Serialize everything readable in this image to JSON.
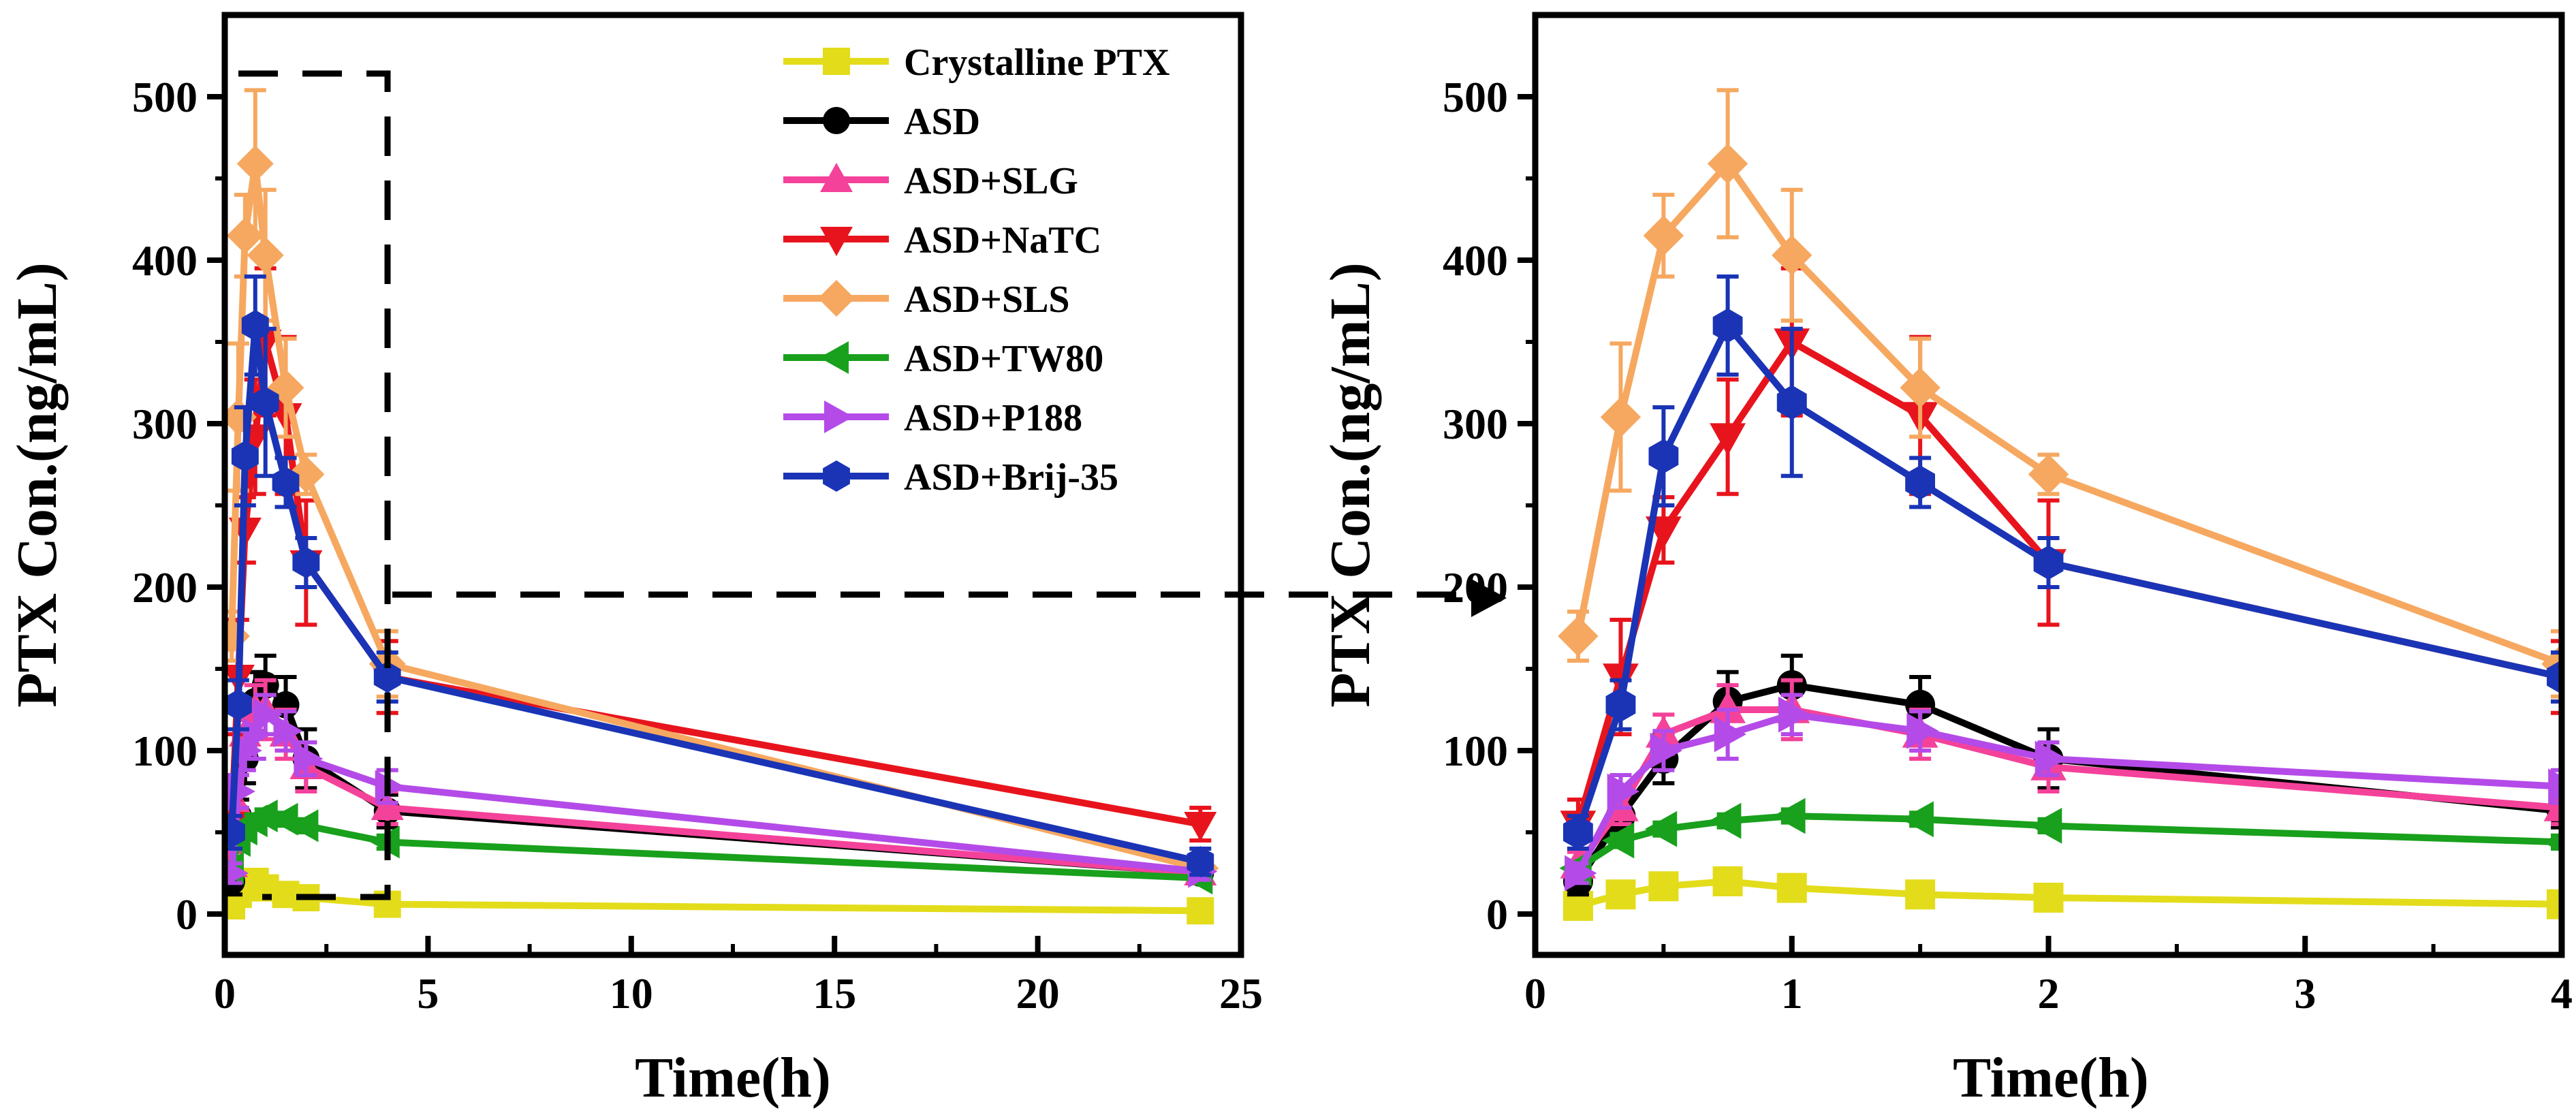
{
  "chart_data": [
    {
      "type": "line",
      "id": "full",
      "xlabel": "Time(h)",
      "ylabel": "PTX Con.(ng/mL)",
      "xlim": [
        0,
        25
      ],
      "ylim": [
        -25,
        550
      ],
      "xticks": [
        0,
        5,
        10,
        15,
        20,
        25
      ],
      "yticks": [
        0,
        100,
        200,
        300,
        400,
        500
      ],
      "legend_position": "top-right",
      "x": [
        0.167,
        0.333,
        0.5,
        0.75,
        1,
        1.5,
        2,
        4,
        24
      ],
      "series": [
        {
          "name": "Crystalline PTX",
          "color": "#e3dc1b",
          "marker": "square",
          "values": [
            5,
            12,
            17,
            20,
            16,
            12,
            10,
            6,
            2
          ],
          "errors": [
            3,
            4,
            5,
            6,
            5,
            4,
            4,
            3,
            1
          ]
        },
        {
          "name": "ASD",
          "color": "#000000",
          "marker": "circle",
          "values": [
            20,
            60,
            95,
            130,
            140,
            128,
            95,
            63,
            25
          ],
          "errors": [
            8,
            10,
            15,
            18,
            18,
            17,
            18,
            10,
            5
          ]
        },
        {
          "name": "ASD+SLG",
          "color": "#f4429a",
          "marker": "triangle-up",
          "values": [
            30,
            65,
            110,
            125,
            125,
            110,
            90,
            65,
            25
          ],
          "errors": [
            8,
            10,
            12,
            15,
            18,
            15,
            15,
            10,
            5
          ]
        },
        {
          "name": "ASD+NaTC",
          "color": "#e8141d",
          "marker": "triangle-down",
          "values": [
            55,
            145,
            235,
            292,
            350,
            305,
            215,
            145,
            55
          ],
          "errors": [
            15,
            35,
            20,
            35,
            45,
            48,
            38,
            22,
            10
          ]
        },
        {
          "name": "ASD+SLS",
          "color": "#f6a860",
          "marker": "diamond",
          "values": [
            170,
            304,
            415,
            459,
            403,
            322,
            269,
            153,
            28
          ],
          "errors": [
            15,
            45,
            25,
            45,
            40,
            30,
            12,
            20,
            5
          ]
        },
        {
          "name": "ASD+TW80",
          "color": "#19a01c",
          "marker": "triangle-left",
          "values": [
            28,
            45,
            52,
            57,
            60,
            58,
            54,
            44,
            22
          ],
          "errors": [
            3,
            4,
            4,
            4,
            4,
            4,
            4,
            4,
            3
          ]
        },
        {
          "name": "ASD+P188",
          "color": "#b44be8",
          "marker": "triangle-right",
          "values": [
            25,
            75,
            100,
            110,
            122,
            112,
            95,
            78,
            26
          ],
          "errors": [
            6,
            10,
            12,
            15,
            12,
            12,
            10,
            10,
            5
          ]
        },
        {
          "name": "ASD+Brij-35",
          "color": "#1a34b5",
          "marker": "hexagon",
          "values": [
            50,
            128,
            280,
            360,
            313,
            264,
            215,
            145,
            32
          ],
          "errors": [
            10,
            15,
            30,
            30,
            45,
            15,
            15,
            15,
            8
          ]
        }
      ]
    },
    {
      "type": "line",
      "id": "zoom",
      "xlabel": "Time(h)",
      "ylabel": "PTX Con.(ng/mL)",
      "xlim": [
        0,
        4
      ],
      "ylim": [
        -25,
        550
      ],
      "xticks": [
        0,
        1,
        2,
        3,
        4
      ],
      "yticks": [
        0,
        100,
        200,
        300,
        400,
        500
      ],
      "x": [
        0.167,
        0.333,
        0.5,
        0.75,
        1,
        1.5,
        2,
        4
      ],
      "series_ref": "full"
    }
  ]
}
